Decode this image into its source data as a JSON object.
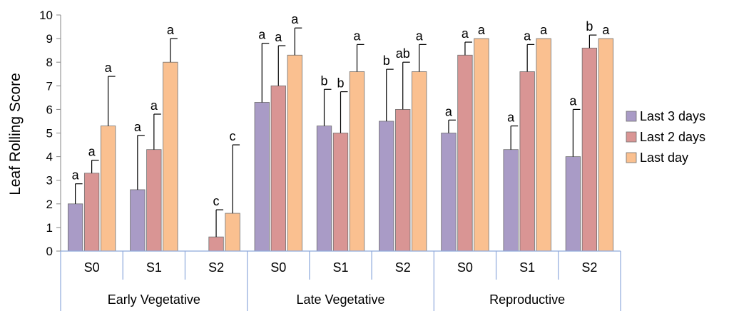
{
  "chart_data": {
    "type": "bar",
    "ylabel": "Leaf Rolling Score",
    "ylim": [
      0,
      10
    ],
    "yticks": [
      "0",
      "1",
      "2",
      "3",
      "4",
      "5",
      "6",
      "7",
      "8",
      "9",
      "10"
    ],
    "groups": [
      {
        "label": "Early Vegetative",
        "subcategories": [
          "S0",
          "S1",
          "S2"
        ]
      },
      {
        "label": "Late Vegetative",
        "subcategories": [
          "S0",
          "S1",
          "S2"
        ]
      },
      {
        "label": "Reproductive",
        "subcategories": [
          "S0",
          "S1",
          "S2"
        ]
      }
    ],
    "categories": [
      "S0",
      "S1",
      "S2",
      "S0",
      "S1",
      "S2",
      "S0",
      "S1",
      "S2"
    ],
    "series": [
      {
        "name": "Last 3 days",
        "color": "#A99BC6",
        "values": [
          2.0,
          2.6,
          0,
          6.3,
          5.3,
          5.5,
          5.0,
          4.3,
          4.0
        ],
        "errors": [
          0.85,
          2.3,
          0,
          2.5,
          1.55,
          2.2,
          0.55,
          1.0,
          2.0
        ],
        "labels": [
          "a",
          "a",
          "",
          "a",
          "b",
          "b",
          "a",
          "a",
          "a"
        ]
      },
      {
        "name": "Last 2 days",
        "color": "#D99594",
        "values": [
          3.3,
          4.3,
          0.6,
          7.0,
          5.0,
          6.0,
          8.3,
          7.6,
          8.6
        ],
        "errors": [
          0.55,
          1.5,
          1.15,
          1.7,
          1.75,
          2.0,
          0.55,
          1.15,
          0.55
        ],
        "labels": [
          "a",
          "a",
          "c",
          "a",
          "b",
          "ab",
          "a",
          "a",
          "b"
        ]
      },
      {
        "name": "Last day",
        "color": "#FAC090",
        "values": [
          5.3,
          8.0,
          1.6,
          8.3,
          7.6,
          7.6,
          9.0,
          9.0,
          9.0
        ],
        "errors": [
          2.1,
          1.0,
          2.9,
          1.15,
          1.15,
          1.15,
          0,
          0,
          0
        ],
        "labels": [
          "a",
          "a",
          "c",
          "a",
          "a",
          "a",
          "a",
          "a",
          "a"
        ]
      }
    ],
    "legend_position": "right",
    "grid": false
  }
}
